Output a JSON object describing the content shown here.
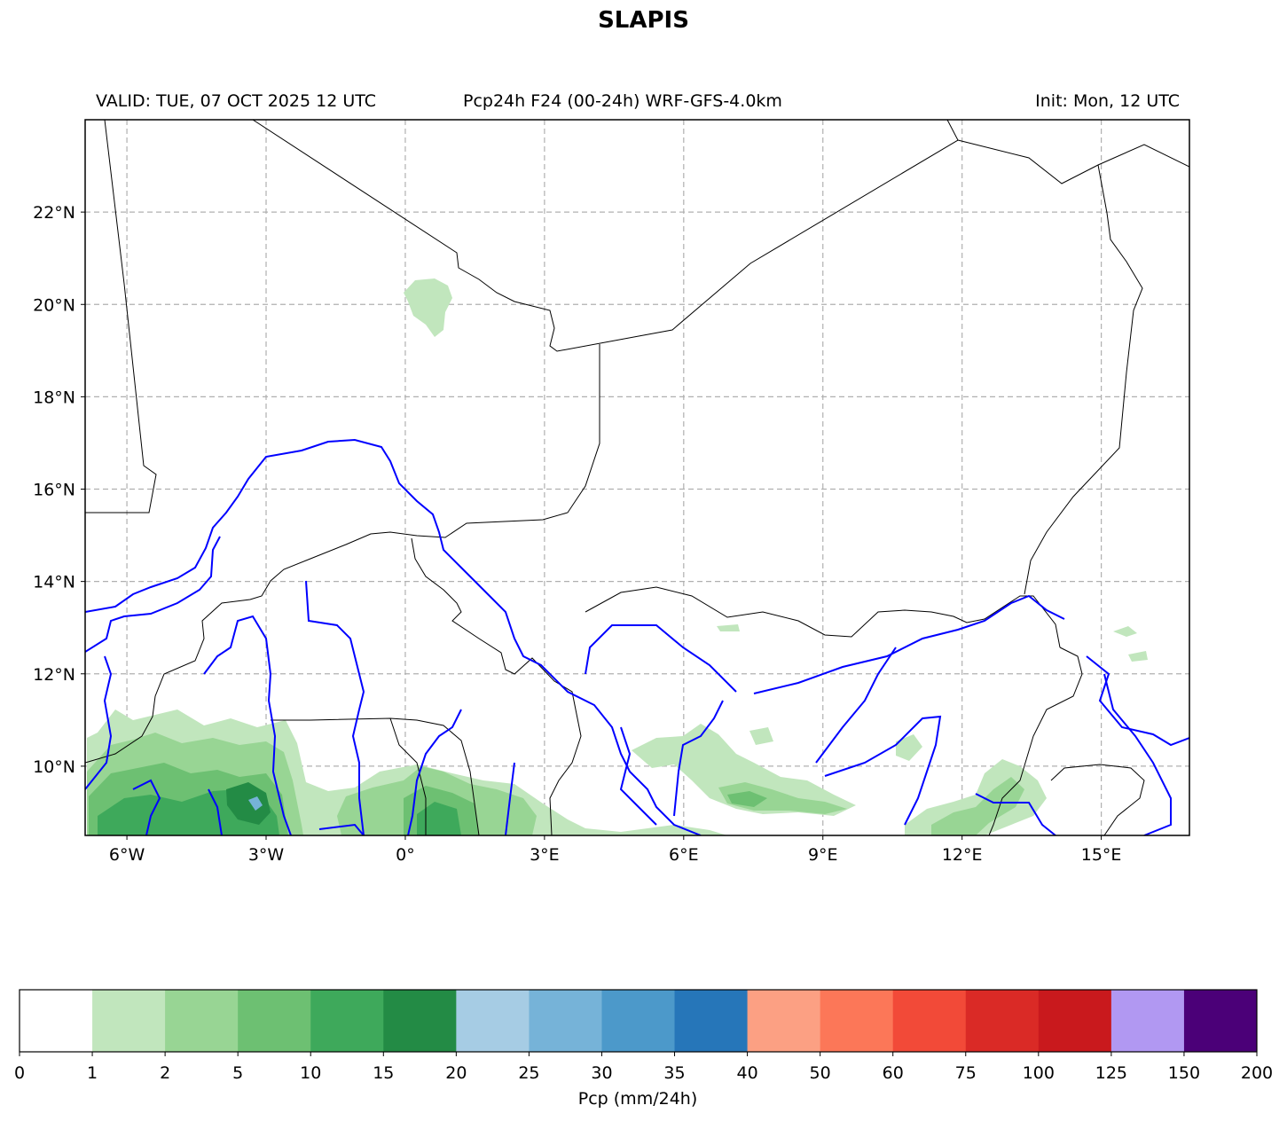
{
  "title": "SLAPIS",
  "subtitle": {
    "left": "VALID: TUE, 07 OCT 2025 12 UTC",
    "center": "Pcp24h F24 (00-24h) WRF-GFS-4.0km",
    "right": "Init: Mon, 12 UTC"
  },
  "map": {
    "lon_range": [
      -6.9,
      16.9
    ],
    "lat_range": [
      8.5,
      24.0
    ],
    "lon_ticks": [
      {
        "value": -6,
        "label": "6°W"
      },
      {
        "value": -3,
        "label": "3°W"
      },
      {
        "value": 0,
        "label": "0°"
      },
      {
        "value": 3,
        "label": "3°E"
      },
      {
        "value": 6,
        "label": "6°E"
      },
      {
        "value": 9,
        "label": "9°E"
      },
      {
        "value": 12,
        "label": "12°E"
      },
      {
        "value": 15,
        "label": "15°E"
      }
    ],
    "lat_ticks": [
      {
        "value": 22,
        "label": "22°N"
      },
      {
        "value": 20,
        "label": "20°N"
      },
      {
        "value": 18,
        "label": "18°N"
      },
      {
        "value": 16,
        "label": "16°N"
      },
      {
        "value": 14,
        "label": "14°N"
      },
      {
        "value": 12,
        "label": "12°N"
      },
      {
        "value": 10,
        "label": "10°N"
      }
    ],
    "grid": true,
    "colors": {
      "borders": "#000000",
      "rivers": "#0000ff",
      "gridlines": "#b0b0b0"
    }
  },
  "colorbar": {
    "label": "Pcp (mm/24h)",
    "bounds": [
      "0",
      "1",
      "2",
      "5",
      "10",
      "15",
      "20",
      "25",
      "30",
      "35",
      "40",
      "50",
      "60",
      "75",
      "100",
      "125",
      "150",
      "200"
    ],
    "colors": [
      "#ffffff",
      "#c1e6bd",
      "#98d594",
      "#6dc072",
      "#3ea95b",
      "#238b45",
      "#a6cce4",
      "#76b3d8",
      "#4c99ca",
      "#2676b9",
      "#fca083",
      "#fc7758",
      "#f24a38",
      "#da2a26",
      "#c9191d",
      "#b198f2",
      "#4b0078"
    ]
  }
}
